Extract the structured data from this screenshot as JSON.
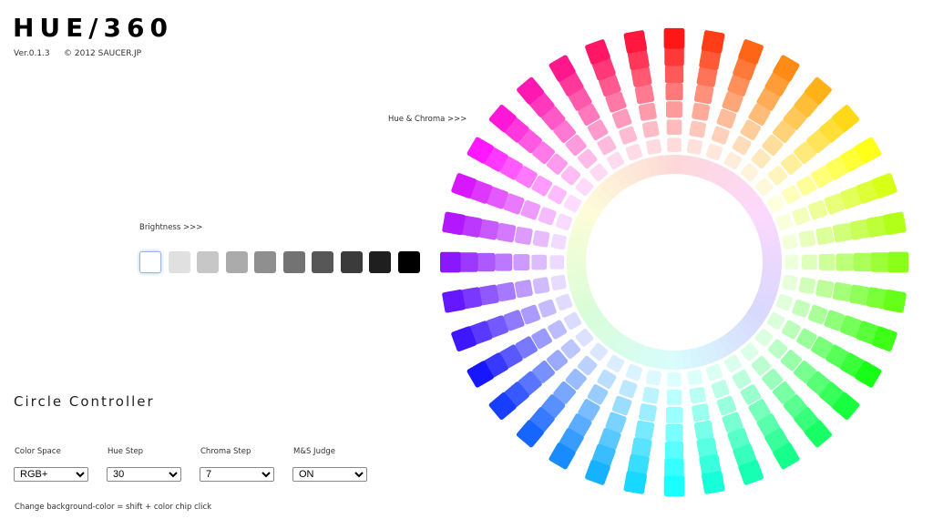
{
  "app": {
    "title": "HUE/360",
    "version": "Ver.0.1.3",
    "copyright": "© 2012 SAUCER.JP"
  },
  "labels": {
    "hue_chroma": "Hue & Chroma >>>",
    "brightness": "Brightness >>>"
  },
  "brightness": {
    "levels": [
      100,
      88,
      78,
      67,
      56,
      45,
      34,
      23,
      12,
      0
    ],
    "selected_index": 0
  },
  "wheel": {
    "hue_step": 30,
    "chroma_step": 7,
    "spokes": 36
  },
  "controller": {
    "title": "Circle Controller",
    "color_space": {
      "label": "Color Space",
      "value": "RGB+"
    },
    "hue_step": {
      "label": "Hue Step",
      "value": "30"
    },
    "chroma_step": {
      "label": "Chroma Step",
      "value": "7"
    },
    "ms_judge": {
      "label": "M&S Judge",
      "value": "ON"
    }
  },
  "hint": "Change background-color = shift + color chip click"
}
